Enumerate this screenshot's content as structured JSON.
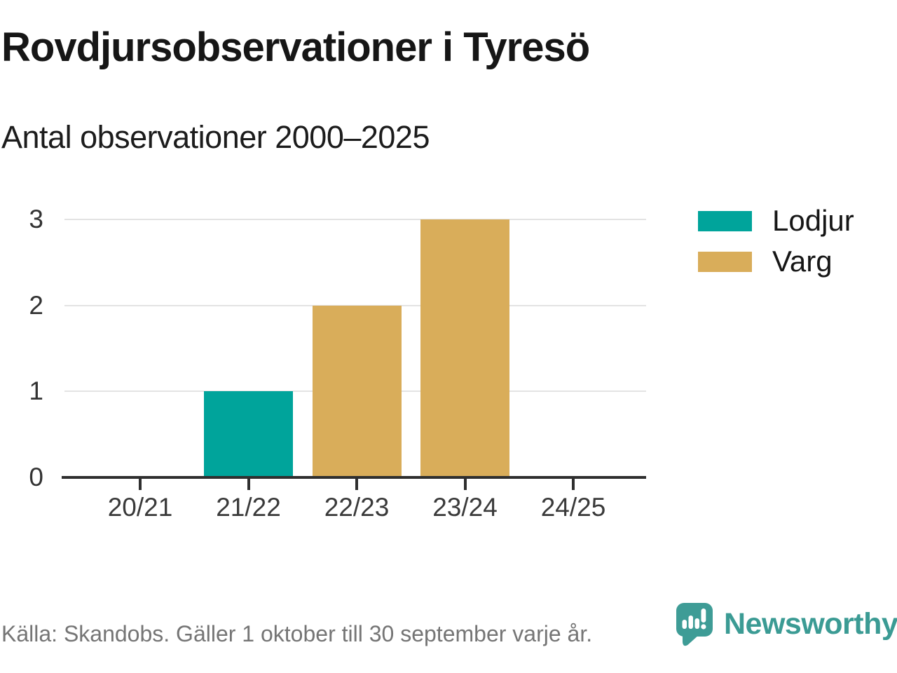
{
  "header": {
    "title": "Rovdjursobservationer i Tyresö",
    "subtitle": "Antal observationer 2000–2025"
  },
  "chart_data": {
    "type": "bar",
    "title": "Rovdjursobservationer i Tyresö",
    "subtitle": "Antal observationer 2000–2025",
    "categories": [
      "20/21",
      "21/22",
      "22/23",
      "23/24",
      "24/25"
    ],
    "series": [
      {
        "name": "Lodjur",
        "color": "#00A49B",
        "values": [
          0,
          1,
          0,
          0,
          0
        ]
      },
      {
        "name": "Varg",
        "color": "#D9AD5A",
        "values": [
          0,
          0,
          2,
          3,
          0
        ]
      }
    ],
    "xlabel": "",
    "ylabel": "",
    "ylim": [
      0,
      3
    ],
    "yticks": [
      0,
      1,
      2,
      3
    ],
    "grid": "horizontal",
    "legend_position": "top-right",
    "grid_color": "#e3e3e3",
    "axis_color": "#2f2f2f"
  },
  "footer": {
    "source": "Källa: Skandobs. Gäller 1 oktober till 30 september varje år.",
    "brand": "Newsworthy",
    "brand_color": "#3B9B94",
    "logo_icon": "speech-bubble-bar-chart-exclamation"
  }
}
